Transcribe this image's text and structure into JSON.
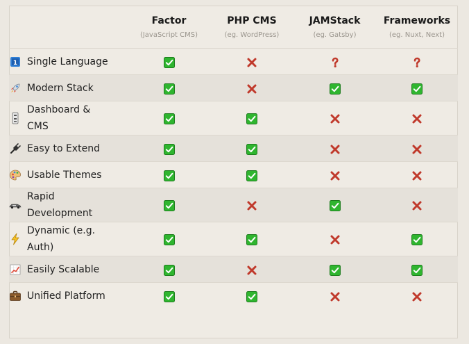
{
  "columns": [
    {
      "title": "",
      "subtitle": ""
    },
    {
      "title": "Factor",
      "subtitle": "(JavaScript CMS)"
    },
    {
      "title": "PHP CMS",
      "subtitle": "(eg. WordPress)"
    },
    {
      "title": "JAMStack",
      "subtitle": "(eg. Gatsby)"
    },
    {
      "title": "Frameworks",
      "subtitle": "(eg. Nuxt, Next)"
    }
  ],
  "rows": [
    {
      "label": "Single Language",
      "icon": "number-one-icon",
      "values": [
        "check",
        "cross",
        "question",
        "question"
      ]
    },
    {
      "label": "Modern Stack",
      "icon": "rocket-icon",
      "values": [
        "check",
        "cross",
        "check",
        "check"
      ]
    },
    {
      "label": "Dashboard & CMS",
      "icon": "control-knobs-icon",
      "values": [
        "check",
        "check",
        "cross",
        "cross"
      ]
    },
    {
      "label": "Easy to Extend",
      "icon": "electric-plug-icon",
      "values": [
        "check",
        "check",
        "cross",
        "cross"
      ]
    },
    {
      "label": "Usable Themes",
      "icon": "palette-icon",
      "values": [
        "check",
        "check",
        "cross",
        "cross"
      ]
    },
    {
      "label": "Rapid Development",
      "icon": "racing-car-icon",
      "values": [
        "check",
        "cross",
        "check",
        "cross"
      ]
    },
    {
      "label": "Dynamic (e.g. Auth)",
      "icon": "lightning-icon",
      "values": [
        "check",
        "check",
        "cross",
        "check"
      ]
    },
    {
      "label": "Easily Scalable",
      "icon": "chart-increasing-icon",
      "values": [
        "check",
        "cross",
        "check",
        "check"
      ]
    },
    {
      "label": "Unified Platform",
      "icon": "briefcase-icon",
      "values": [
        "check",
        "check",
        "cross",
        "cross"
      ]
    }
  ],
  "colors": {
    "check_bg": "#2fb52f",
    "cross": "#c0392b",
    "question": "#c0392b"
  }
}
